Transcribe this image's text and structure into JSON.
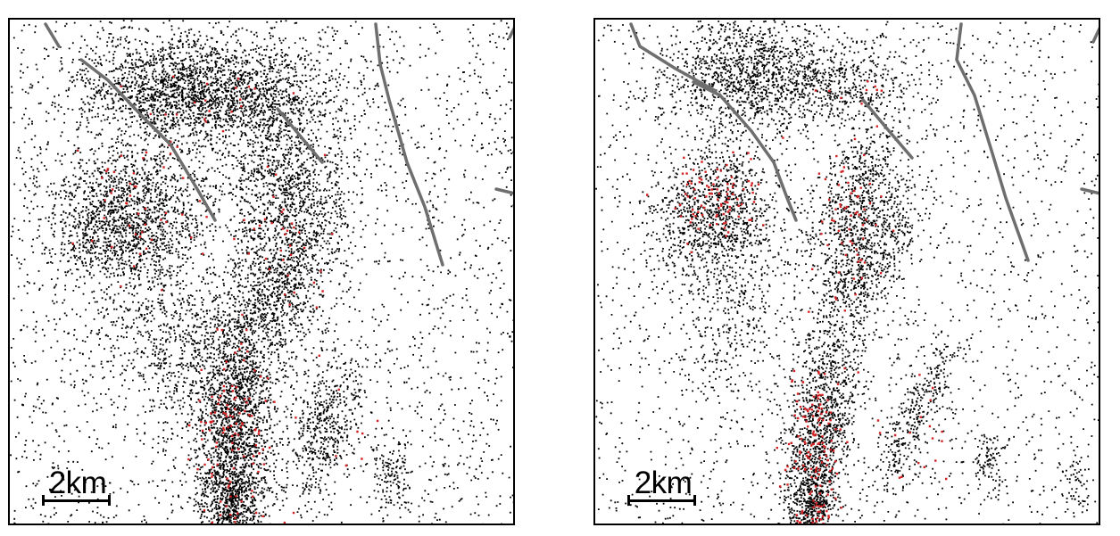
{
  "colors": {
    "background": "#ffffff",
    "frame": "#000000",
    "points_primary": "#000000",
    "points_highlight": "#d42020",
    "fault_lines": "#6e6e6e"
  },
  "panels": [
    {
      "id": "left",
      "scale_label": "2km"
    },
    {
      "id": "right",
      "scale_label": "2km"
    }
  ]
}
